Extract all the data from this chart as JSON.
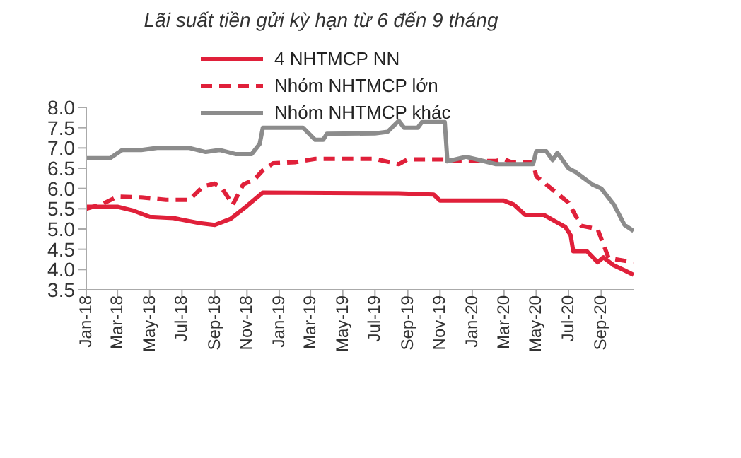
{
  "chart_data": {
    "type": "line",
    "title": "Lãi suất tiền gửi kỳ hạn từ 6 đến 9 tháng",
    "xlim": [
      "2018-01-01",
      "2020-11-01"
    ],
    "xticks": [
      {
        "value": "2018-01",
        "label": "Jan-18"
      },
      {
        "value": "2018-03",
        "label": "Mar-18"
      },
      {
        "value": "2018-05",
        "label": "May-18"
      },
      {
        "value": "2018-07",
        "label": "Jul-18"
      },
      {
        "value": "2018-09",
        "label": "Sep-18"
      },
      {
        "value": "2018-11",
        "label": "Nov-18"
      },
      {
        "value": "2019-01",
        "label": "Jan-19"
      },
      {
        "value": "2019-03",
        "label": "Mar-19"
      },
      {
        "value": "2019-05",
        "label": "May-19"
      },
      {
        "value": "2019-07",
        "label": "Jul-19"
      },
      {
        "value": "2019-09",
        "label": "Sep-19"
      },
      {
        "value": "2019-11",
        "label": "Nov-19"
      },
      {
        "value": "2020-01",
        "label": "Jan-20"
      },
      {
        "value": "2020-03",
        "label": "Mar-20"
      },
      {
        "value": "2020-05",
        "label": "May-20"
      },
      {
        "value": "2020-07",
        "label": "Jul-20"
      },
      {
        "value": "2020-09",
        "label": "Sep-20"
      }
    ],
    "ylim": [
      3.5,
      8.0
    ],
    "yticks": [
      {
        "value": 3.5,
        "label": "3.5"
      },
      {
        "value": 4,
        "label": "4.0"
      },
      {
        "value": 4.5,
        "label": "4.5"
      },
      {
        "value": 5,
        "label": "5.0"
      },
      {
        "value": 5.5,
        "label": "5.5"
      },
      {
        "value": 6,
        "label": "6.0"
      },
      {
        "value": 6.5,
        "label": "6.5"
      },
      {
        "value": 7,
        "label": "7.0"
      },
      {
        "value": 7.5,
        "label": "7.5"
      },
      {
        "value": 8,
        "label": "8.0"
      }
    ],
    "grid": false,
    "legend": "top left",
    "marker": "none",
    "series": [
      {
        "name": "4 NHTMCP NN",
        "color": "#e0203a",
        "line_style": "solid",
        "x": [
          "2018-01-01",
          "2018-03-01",
          "2018-04-01",
          "2018-05-01",
          "2018-06-15",
          "2018-08-01",
          "2018-09-01",
          "2018-10-01",
          "2018-11-01",
          "2018-12-01",
          "2019-08-15",
          "2019-10-20",
          "2019-11-01",
          "2020-03-01",
          "2020-03-20",
          "2020-04-10",
          "2020-05-15",
          "2020-06-10",
          "2020-06-25",
          "2020-07-05",
          "2020-07-10",
          "2020-08-05",
          "2020-08-25",
          "2020-09-05",
          "2020-09-25",
          "2020-10-15",
          "2020-11-01"
        ],
        "values": [
          5.55,
          5.55,
          5.45,
          5.3,
          5.27,
          5.15,
          5.1,
          5.25,
          5.57,
          5.9,
          5.88,
          5.85,
          5.7,
          5.7,
          5.6,
          5.35,
          5.35,
          5.16,
          5.05,
          4.85,
          4.45,
          4.45,
          4.18,
          4.3,
          4.1,
          3.98,
          3.87
        ]
      },
      {
        "name": "Nhóm NHTMCP lớn",
        "color": "#e0203a",
        "line_style": "dashed",
        "x": [
          "2018-01-01",
          "2018-02-01",
          "2018-03-01",
          "2018-04-15",
          "2018-06-01",
          "2018-07-15",
          "2018-08-10",
          "2018-09-01",
          "2018-09-15",
          "2018-10-05",
          "2018-10-25",
          "2018-11-15",
          "2018-12-01",
          "2018-12-20",
          "2019-02-01",
          "2019-03-10",
          "2019-07-01",
          "2019-08-15",
          "2019-09-01",
          "2019-11-15",
          "2019-12-01",
          "2020-02-15",
          "2020-03-01",
          "2020-03-15",
          "2020-04-25",
          "2020-05-01",
          "2020-06-01",
          "2020-07-01",
          "2020-07-25",
          "2020-08-25",
          "2020-09-15",
          "2020-11-01"
        ],
        "values": [
          5.5,
          5.62,
          5.8,
          5.78,
          5.72,
          5.72,
          6.05,
          6.12,
          6.0,
          5.6,
          6.1,
          6.22,
          6.45,
          6.62,
          6.65,
          6.73,
          6.73,
          6.6,
          6.72,
          6.72,
          6.68,
          6.68,
          6.72,
          6.65,
          6.65,
          6.3,
          5.97,
          5.65,
          5.08,
          5.0,
          4.28,
          4.18
        ]
      },
      {
        "name": "Nhóm NHTMCP khác",
        "color": "#8c8c8c",
        "line_style": "solid",
        "x": [
          "2018-01-01",
          "2018-02-15",
          "2018-03-10",
          "2018-04-15",
          "2018-05-15",
          "2018-07-15",
          "2018-08-15",
          "2018-09-10",
          "2018-10-10",
          "2018-11-10",
          "2018-11-25",
          "2018-12-01",
          "2019-02-15",
          "2019-03-10",
          "2019-03-25",
          "2019-04-01",
          "2019-07-01",
          "2019-07-25",
          "2019-08-15",
          "2019-08-25",
          "2019-09-20",
          "2019-09-28",
          "2019-11-10",
          "2019-11-15",
          "2019-12-20",
          "2020-01-15",
          "2020-02-15",
          "2020-04-25",
          "2020-05-01",
          "2020-05-20",
          "2020-06-01",
          "2020-06-10",
          "2020-07-01",
          "2020-07-15",
          "2020-08-15",
          "2020-09-01",
          "2020-09-25",
          "2020-10-15",
          "2020-11-01"
        ],
        "values": [
          6.75,
          6.75,
          6.95,
          6.95,
          7.0,
          7.0,
          6.9,
          6.95,
          6.85,
          6.85,
          7.1,
          7.5,
          7.5,
          7.2,
          7.2,
          7.35,
          7.36,
          7.4,
          7.67,
          7.5,
          7.5,
          7.64,
          7.64,
          6.67,
          6.78,
          6.7,
          6.6,
          6.6,
          6.92,
          6.92,
          6.7,
          6.88,
          6.5,
          6.4,
          6.1,
          6.0,
          5.6,
          5.1,
          4.95
        ]
      }
    ]
  }
}
